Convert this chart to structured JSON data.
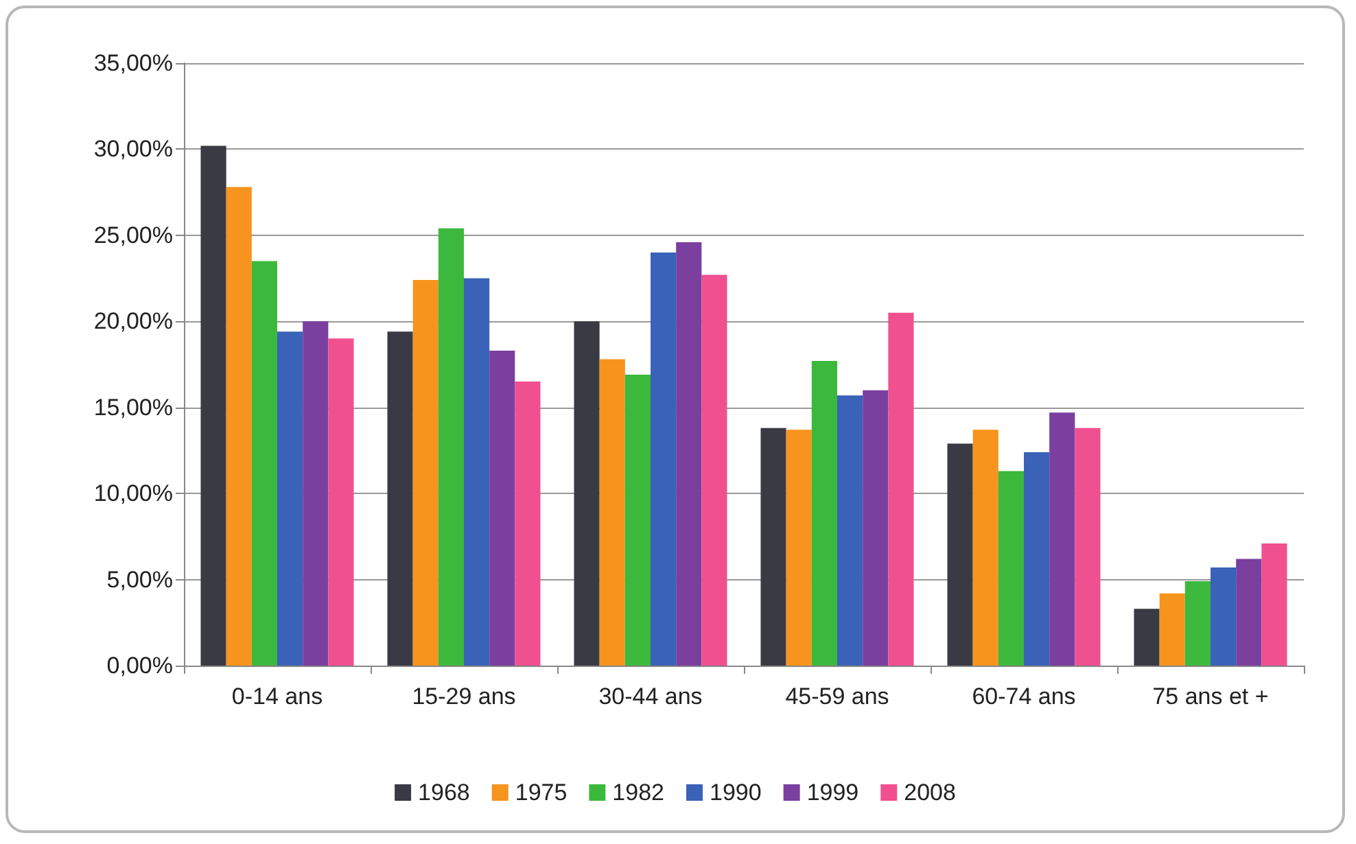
{
  "chart_data": {
    "type": "bar",
    "categories": [
      "0-14 ans",
      "15-29 ans",
      "30-44 ans",
      "45-59 ans",
      "60-74 ans",
      "75 ans et +"
    ],
    "series": [
      {
        "name": "1968",
        "color": "#3a3a44",
        "values": [
          30.2,
          19.4,
          20.0,
          13.8,
          12.9,
          3.3
        ]
      },
      {
        "name": "1975",
        "color": "#f7941d",
        "values": [
          27.8,
          22.4,
          17.8,
          13.7,
          13.7,
          4.2
        ]
      },
      {
        "name": "1982",
        "color": "#3cb93c",
        "values": [
          23.5,
          25.4,
          16.9,
          17.7,
          11.3,
          4.9
        ]
      },
      {
        "name": "1990",
        "color": "#3a62b8",
        "values": [
          19.4,
          22.5,
          24.0,
          15.7,
          12.4,
          5.7
        ]
      },
      {
        "name": "1999",
        "color": "#7b3fa0",
        "values": [
          20.0,
          18.3,
          24.6,
          16.0,
          14.7,
          6.2
        ]
      },
      {
        "name": "2008",
        "color": "#f0508f",
        "values": [
          19.0,
          16.5,
          22.7,
          20.5,
          13.8,
          7.1
        ]
      }
    ],
    "ylim": [
      0,
      35
    ],
    "yticks": [
      {
        "value": 0,
        "label": "0,00%"
      },
      {
        "value": 5,
        "label": "5,00%"
      },
      {
        "value": 10,
        "label": "10,00%"
      },
      {
        "value": 15,
        "label": "15,00%"
      },
      {
        "value": 20,
        "label": "20,00%"
      },
      {
        "value": 25,
        "label": "25,00%"
      },
      {
        "value": 30,
        "label": "30,00%"
      },
      {
        "value": 35,
        "label": "35,00%"
      }
    ],
    "grid": "y",
    "legend": "bottom"
  }
}
